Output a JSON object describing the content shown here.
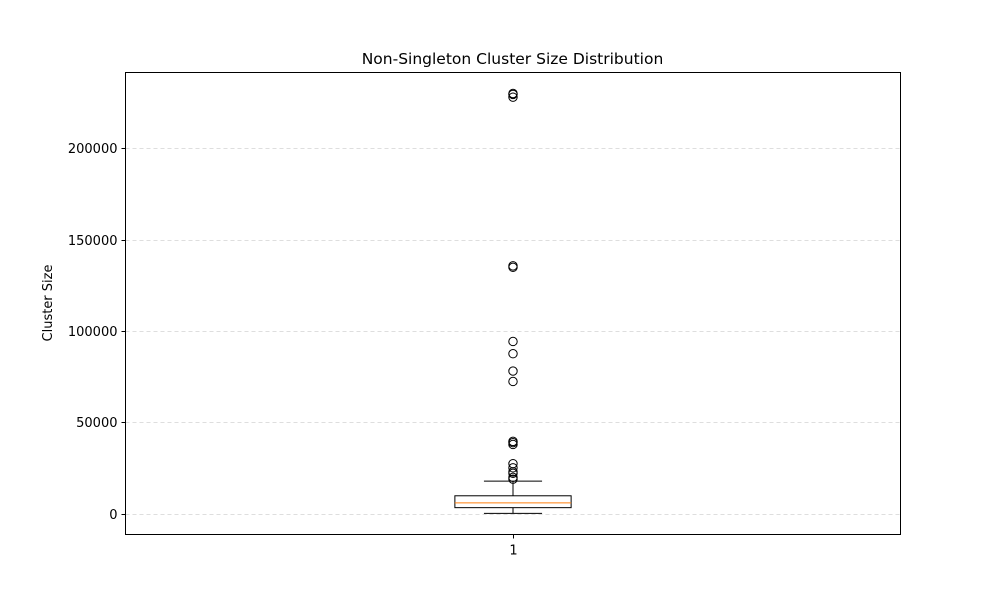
{
  "chart_data": {
    "type": "box",
    "title": "Non-Singleton Cluster Size Distribution",
    "xlabel": "",
    "ylabel": "Cluster Size",
    "categories": [
      "1"
    ],
    "boxes": [
      {
        "category": "1",
        "whisker_low": 100,
        "q1": 3200,
        "median": 5800,
        "q3": 9700,
        "whisker_high": 17700,
        "outliers": [
          18800,
          19800,
          22000,
          22800,
          25000,
          27300,
          37800,
          38800,
          39500,
          72300,
          78000,
          87500,
          94200,
          134800,
          135600,
          228000,
          229500,
          230000
        ]
      }
    ],
    "ylim": [
      -11500,
      241500
    ],
    "yticks": [
      0,
      50000,
      100000,
      150000,
      200000
    ],
    "ytick_labels": [
      "0",
      "50000",
      "100000",
      "150000",
      "200000"
    ],
    "grid": "y-dashed",
    "colors": {
      "median": "#ff7f0e",
      "box": "#000000",
      "grid": "#d3d3d3"
    }
  }
}
